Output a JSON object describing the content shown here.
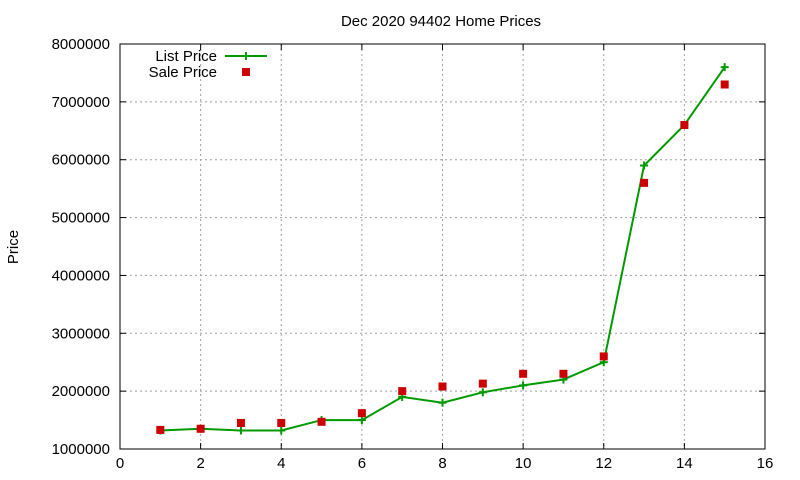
{
  "chart_data": {
    "type": "line",
    "title": "Dec 2020 94402 Home Prices",
    "xlabel": "",
    "ylabel": "Price",
    "xlim": [
      0,
      16
    ],
    "ylim": [
      1000000,
      8000000
    ],
    "xticks": [
      0,
      2,
      4,
      6,
      8,
      10,
      12,
      14,
      16
    ],
    "yticks": [
      1000000,
      2000000,
      3000000,
      4000000,
      5000000,
      6000000,
      7000000,
      8000000
    ],
    "grid": true,
    "legend_position": "top-left",
    "series": [
      {
        "name": "List Price",
        "style": "line-plus",
        "color": "#009900",
        "x": [
          1,
          2,
          3,
          4,
          5,
          6,
          7,
          8,
          9,
          10,
          11,
          12,
          13,
          14,
          15
        ],
        "y": [
          1320000,
          1350000,
          1320000,
          1320000,
          1500000,
          1500000,
          1900000,
          1800000,
          1980000,
          2100000,
          2200000,
          2500000,
          5900000,
          6600000,
          7600000
        ]
      },
      {
        "name": "Sale Price",
        "style": "square-marker",
        "color": "#cc0000",
        "x": [
          1,
          2,
          3,
          4,
          5,
          6,
          7,
          8,
          9,
          10,
          11,
          12,
          13,
          14,
          15
        ],
        "y": [
          1330000,
          1350000,
          1450000,
          1450000,
          1470000,
          1620000,
          2000000,
          2080000,
          2130000,
          2300000,
          2300000,
          2600000,
          5600000,
          6600000,
          7300000
        ]
      }
    ]
  }
}
